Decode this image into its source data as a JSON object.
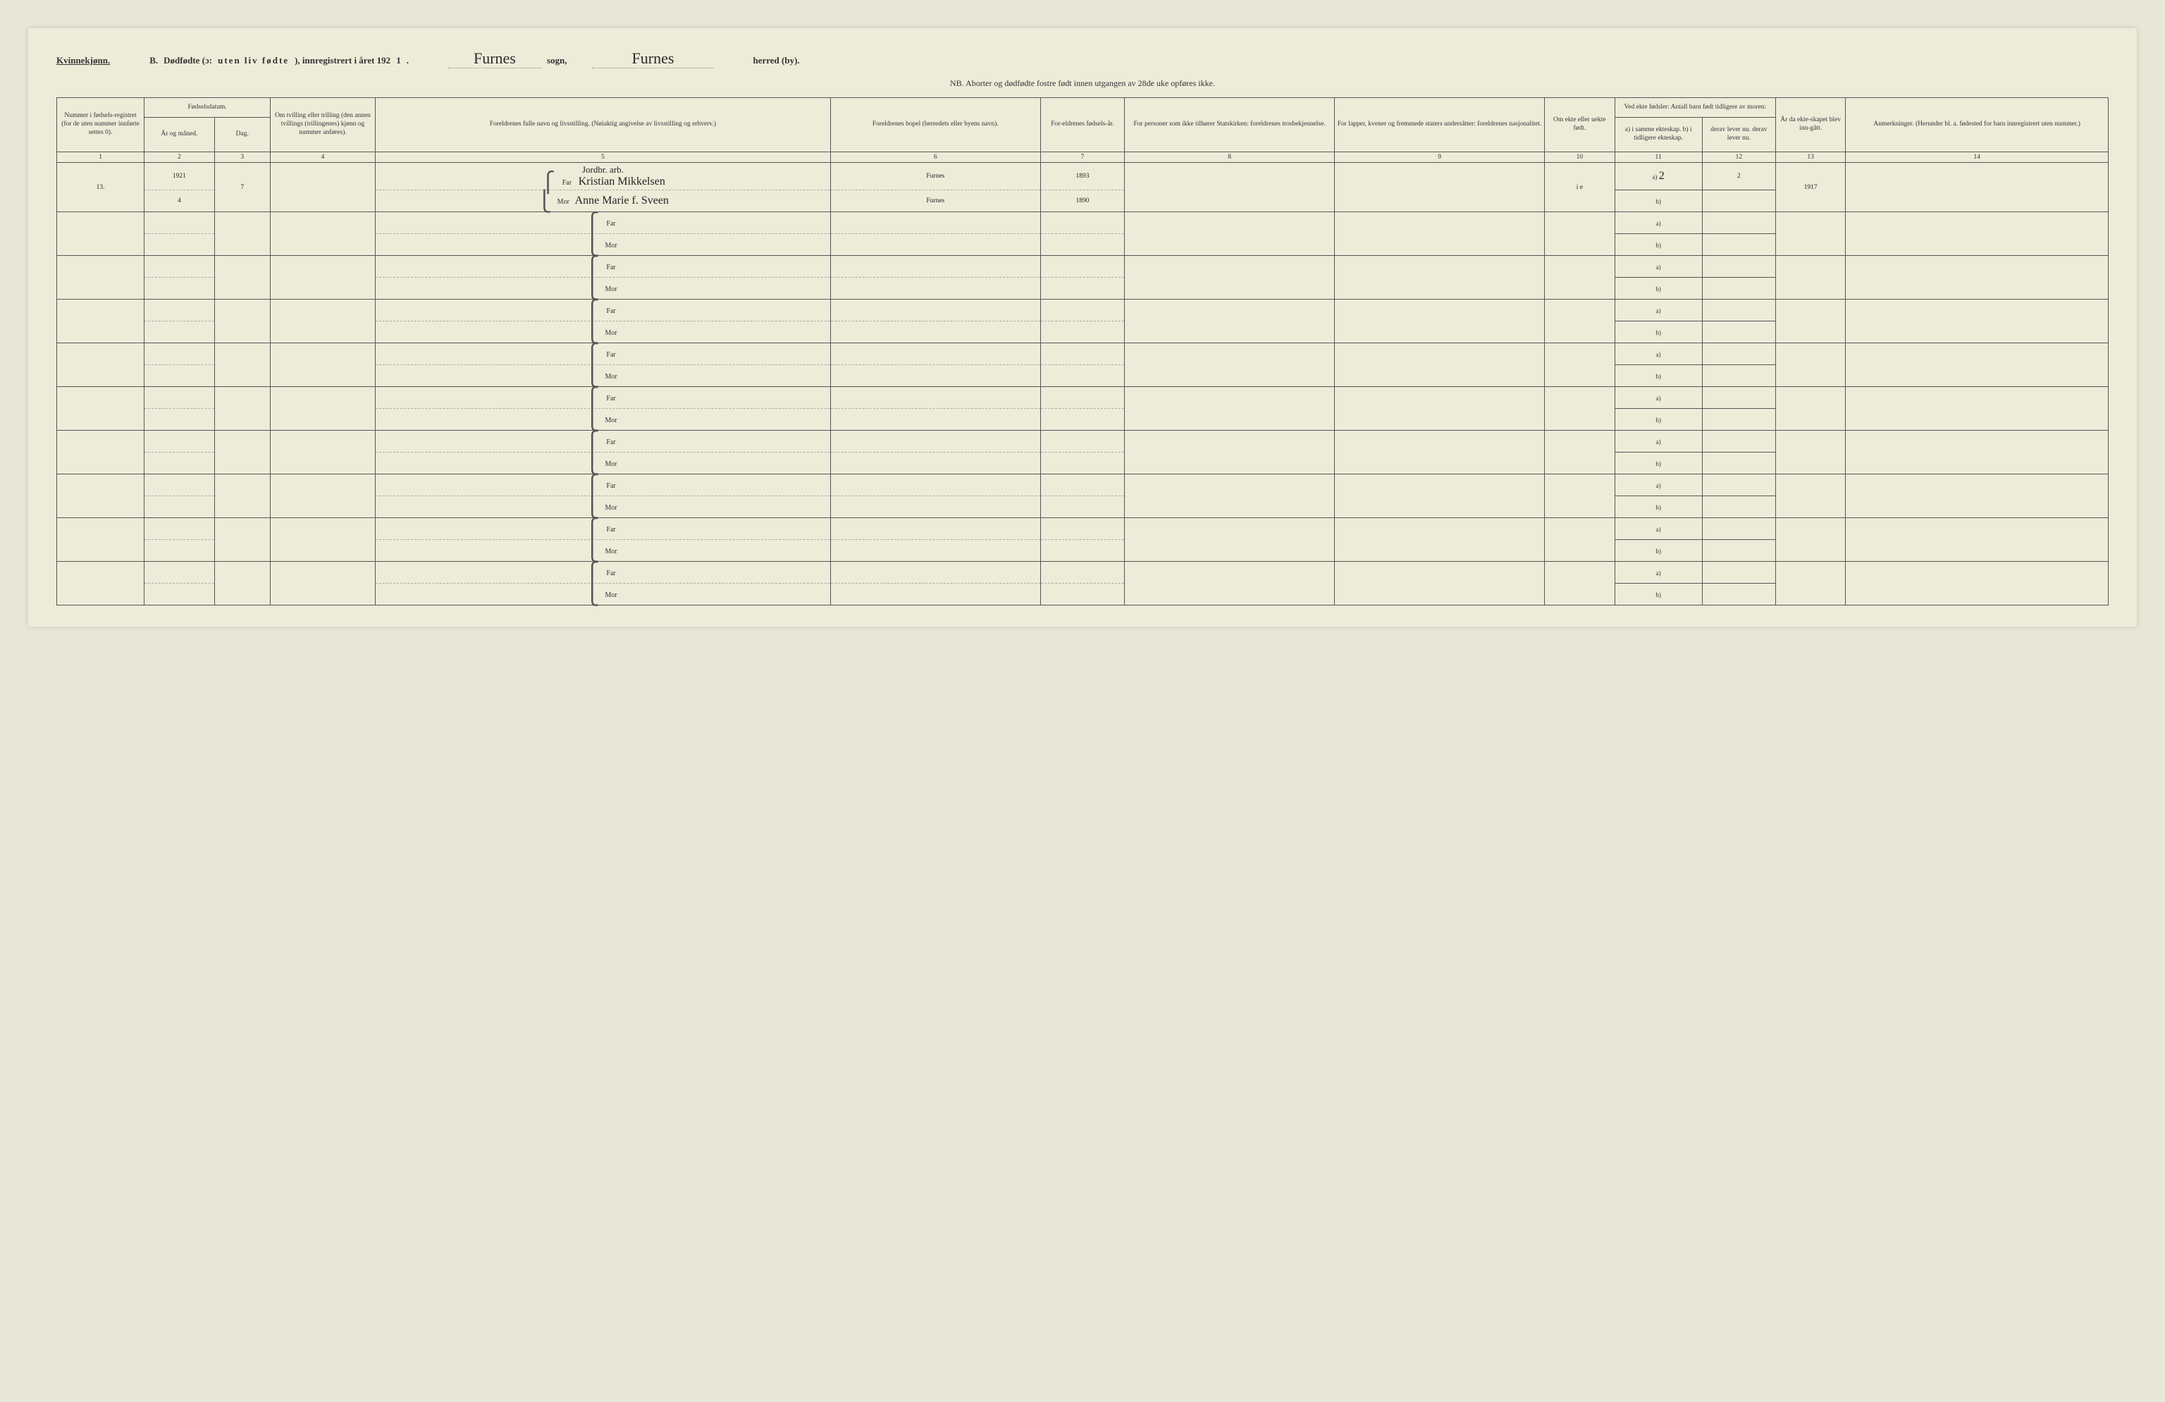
{
  "header": {
    "gender": "Kvinnekjønn.",
    "section_letter": "B.",
    "title_main": "Dødfødte (ɔ:",
    "title_spaced": "uten liv fødte",
    "title_tail": "), innregistrert i året 192",
    "year_suffix": "1",
    "period": ".",
    "sogn_value": "Furnes",
    "sogn_label": "sogn,",
    "herred_value": "Furnes",
    "herred_label": "herred (by)."
  },
  "nb_line": "NB.  Aborter og dødfødte fostre født innen utgangen av 28de uke opføres ikke.",
  "columns": {
    "c1": "Nummer i fødsels-registret (for de uten nummer innførte settes 0).",
    "c2_group": "Fødselsdatum.",
    "c2": "År og måned.",
    "c3": "Dag.",
    "c4": "Om tvilling eller trilling (den annen tvillings (trillingenes) kjønn og nummer anføres).",
    "c5": "Foreldrenes fulle navn og livsstilling.\n(Nøiaktig angivelse av livsstilling og erhverv.)",
    "c6": "Foreldrenes bopel (herredets eller byens navn).",
    "c7": "For-eldrenes fødsels-år.",
    "c8": "For personer som ikke tilhører Statskirken: foreldrenes trosbekjennelse.",
    "c9": "For lapper, kvener og fremmede staters undersåtter: foreldrenes nasjonalitet.",
    "c10": "Om ekte eller uekte født.",
    "c11_group": "Ved ekte fødsler:\nAntall barn født tidligere av moren:",
    "c11": "a) i samme ekteskap.\nb) i tidligere ekteskap.",
    "c12": "derav lever nu.\nderav lever nu.",
    "c13": "År da ekte-skapet blev inn-gått.",
    "c14": "Anmerkninger.\n(Herunder bl. a. fødested for barn innregistrert uten nummer.)"
  },
  "colnums": [
    "1",
    "2",
    "3",
    "4",
    "5",
    "6",
    "7",
    "8",
    "9",
    "10",
    "11",
    "12",
    "13",
    "14"
  ],
  "labels": {
    "far": "Far",
    "mor": "Mor",
    "a": "a)",
    "b": "b)"
  },
  "entries": [
    {
      "num": "13.",
      "year_month_top": "1921",
      "year_month_bot": "4",
      "day": "7",
      "twin": "",
      "occupation_note": "Jordbr. arb.",
      "far_name": "Kristian Mikkelsen",
      "mor_name": "Anne Marie f. Sveen",
      "far_place": "Furnes",
      "mor_place": "Furnes",
      "far_year": "1893",
      "mor_year": "1890",
      "c8": "",
      "c9": "",
      "ekte": "i e",
      "a_val": "2",
      "a_lever": "2",
      "b_val": "",
      "b_lever": "",
      "ekteskap_year": "1917",
      "remarks": ""
    }
  ],
  "blank_rows": 9
}
